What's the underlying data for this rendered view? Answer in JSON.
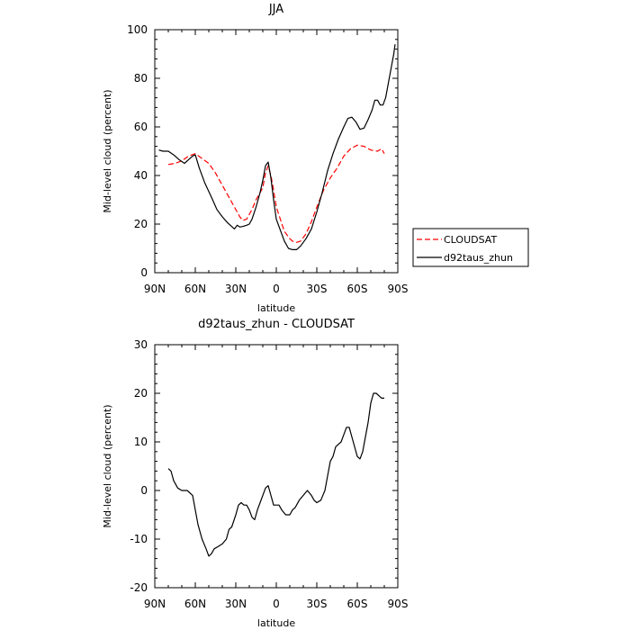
{
  "chart_data": [
    {
      "type": "line",
      "title": "JJA",
      "xlabel": "latitude",
      "ylabel": "Mid-level cloud (percent)",
      "xlim": [
        90,
        -90
      ],
      "ylim": [
        0,
        100
      ],
      "xticks": [
        90,
        60,
        30,
        0,
        -30,
        -60,
        -90
      ],
      "xticklabels": [
        "90N",
        "60N",
        "30N",
        "0",
        "30S",
        "60S",
        "90S"
      ],
      "yticks": [
        0,
        20,
        40,
        60,
        80,
        100
      ],
      "yticklabels": [
        "0",
        "20",
        "40",
        "60",
        "80",
        "100"
      ],
      "legend_position": "right",
      "series": [
        {
          "name": "CLOUDSAT",
          "color": "#ff0000",
          "dash": "dashed",
          "x": [
            80,
            75,
            70,
            65,
            60,
            55,
            50,
            45,
            40,
            35,
            30,
            27,
            25,
            22,
            18,
            15,
            12,
            10,
            8,
            6,
            4,
            2,
            0,
            -3,
            -6,
            -10,
            -12,
            -15,
            -18,
            -22,
            -26,
            -30,
            -35,
            -40,
            -45,
            -50,
            -55,
            -60,
            -65,
            -70,
            -75,
            -78,
            -80
          ],
          "y": [
            44.5,
            45,
            46,
            48,
            49,
            47,
            45,
            41,
            36,
            31,
            26,
            23,
            21.5,
            22,
            26,
            30,
            33,
            35,
            41,
            44,
            40,
            34,
            27,
            22,
            17,
            14,
            13,
            12.5,
            13,
            16,
            21,
            27,
            34,
            39,
            43,
            48,
            51,
            52.5,
            52,
            50.5,
            50,
            51,
            49
          ]
        },
        {
          "name": "d92taus_zhun",
          "color": "#000000",
          "dash": "solid",
          "x": [
            87,
            84,
            80,
            76,
            72,
            68,
            65,
            62,
            60,
            57,
            53,
            48,
            44,
            40,
            36,
            33,
            31,
            29,
            27,
            25,
            22,
            20,
            18,
            15,
            12,
            10,
            8,
            6,
            4,
            2,
            0,
            -3,
            -6,
            -9,
            -12,
            -15,
            -18,
            -22,
            -26,
            -30,
            -34,
            -38,
            -42,
            -46,
            -50,
            -53,
            -56,
            -59,
            -62,
            -65,
            -68,
            -71,
            -73,
            -75,
            -77,
            -79,
            -81,
            -83,
            -85,
            -87,
            -88
          ],
          "y": [
            50.5,
            50,
            50,
            48.5,
            46.5,
            45,
            46.5,
            48,
            48.5,
            43,
            37,
            31,
            26,
            23,
            20.5,
            19,
            18,
            19.5,
            18.8,
            19,
            19.5,
            20,
            22,
            27,
            33,
            38,
            44,
            45.5,
            39,
            30,
            22,
            17.5,
            13,
            10,
            9.5,
            9.5,
            11,
            14,
            18,
            25,
            33,
            42,
            49,
            55,
            60,
            63.5,
            64,
            62,
            59,
            59.5,
            63,
            67,
            71,
            71,
            69,
            69,
            72,
            78,
            84,
            90,
            94
          ]
        }
      ]
    },
    {
      "type": "line",
      "title": "d92taus_zhun - CLOUDSAT",
      "xlabel": "latitude",
      "ylabel": "Mid-level cloud (percent)",
      "xlim": [
        90,
        -90
      ],
      "ylim": [
        -20,
        30
      ],
      "xticks": [
        90,
        60,
        30,
        0,
        -30,
        -60,
        -90
      ],
      "xticklabels": [
        "90N",
        "60N",
        "30N",
        "0",
        "30S",
        "60S",
        "90S"
      ],
      "yticks": [
        -20,
        -10,
        0,
        10,
        20,
        30
      ],
      "yticklabels": [
        "-20",
        "-10",
        "0",
        "10",
        "20",
        "30"
      ],
      "series": [
        {
          "color": "#000000",
          "dash": "solid",
          "x": [
            80,
            78,
            76,
            73,
            70,
            66,
            62,
            58,
            55,
            52,
            50,
            48,
            46,
            43,
            40,
            37,
            35,
            33,
            30,
            28,
            26,
            24,
            22,
            20,
            18,
            16,
            14,
            12,
            10,
            8,
            6,
            4,
            2,
            0,
            -2,
            -4,
            -7,
            -10,
            -12,
            -14,
            -17,
            -20,
            -23,
            -26,
            -28,
            -30,
            -33,
            -36,
            -38,
            -40,
            -42,
            -44,
            -46,
            -48,
            -50,
            -52,
            -54,
            -56,
            -58,
            -60,
            -62,
            -64,
            -66,
            -68,
            -70,
            -72,
            -74,
            -76,
            -78,
            -80
          ],
          "y": [
            4.5,
            4,
            2,
            0.5,
            0,
            0,
            -1,
            -7,
            -10,
            -12,
            -13.5,
            -13,
            -12,
            -11.5,
            -11,
            -10,
            -8,
            -7.5,
            -5,
            -3,
            -2.5,
            -3,
            -3,
            -4,
            -5.5,
            -6,
            -4,
            -2.5,
            -1,
            0.5,
            1,
            -1,
            -3,
            -3,
            -3,
            -4,
            -5,
            -5,
            -4,
            -3.5,
            -2,
            -1,
            0,
            -1,
            -2,
            -2.5,
            -2,
            0,
            3,
            6,
            7,
            9,
            9.5,
            10,
            11.5,
            13,
            13,
            11,
            9,
            7,
            6.5,
            8,
            11,
            14,
            18,
            20,
            20,
            19.5,
            19,
            19
          ]
        }
      ]
    }
  ]
}
